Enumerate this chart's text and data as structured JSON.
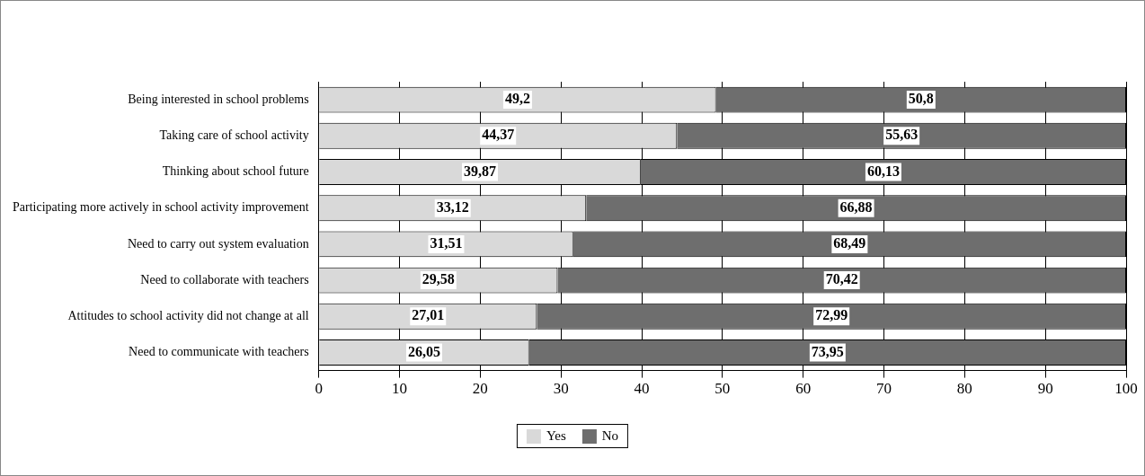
{
  "chart_data": {
    "type": "bar",
    "orientation": "horizontal",
    "stacked": true,
    "categories": [
      "Being interested in school problems",
      "Taking care of school activity",
      "Thinking about school future",
      "Participating more actively in school activity improvement",
      "Need to carry out system evaluation",
      "Need to collaborate with teachers",
      "Attitudes to school activity did not change at all",
      "Need to communicate with teachers"
    ],
    "series": [
      {
        "name": "Yes",
        "color": "#d9d9d9",
        "values": [
          49.2,
          44.37,
          39.87,
          33.12,
          31.51,
          29.58,
          27.01,
          26.05
        ]
      },
      {
        "name": "No",
        "color": "#6e6e6e",
        "values": [
          50.8,
          55.63,
          60.13,
          66.88,
          68.49,
          70.42,
          72.99,
          73.95
        ]
      }
    ],
    "value_labels": [
      [
        "49,2",
        "44,37",
        "39,87",
        "33,12",
        "31,51",
        "29,58",
        "27,01",
        "26,05"
      ],
      [
        "50,8",
        "55,63",
        "60,13",
        "66,88",
        "68,49",
        "70,42",
        "72,99",
        "73,95"
      ]
    ],
    "xlim": [
      0,
      100
    ],
    "xticks": [
      0,
      10,
      20,
      30,
      40,
      50,
      60,
      70,
      80,
      90,
      100
    ],
    "grid": "x",
    "legend": "bottom"
  }
}
